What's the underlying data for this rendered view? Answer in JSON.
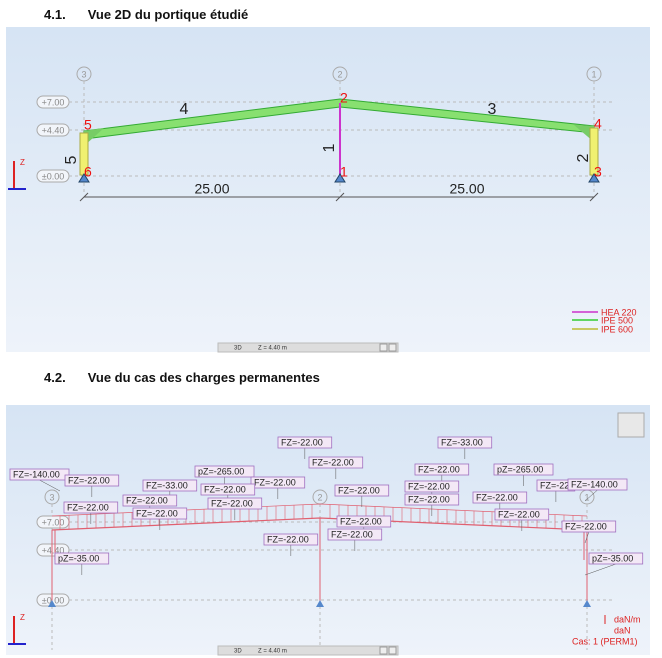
{
  "sections": [
    {
      "number": "4.1.",
      "title": "Vue 2D du portique étudié"
    },
    {
      "number": "4.2.",
      "title": "Vue du cas des charges permanentes"
    }
  ],
  "view1": {
    "axes": [
      "3",
      "2",
      "1"
    ],
    "levels": [
      "+7.00",
      "+4.40",
      "±0.00"
    ],
    "nodes": [
      "5",
      "2",
      "4",
      "6",
      "1",
      "3"
    ],
    "bars": [
      "4",
      "3",
      "1",
      "5",
      "2"
    ],
    "dimensions": [
      "25.00",
      "25.00"
    ],
    "legend": [
      "HEA 220",
      "IPE 500",
      "IPE 600"
    ],
    "axis_label": "Z",
    "status": [
      "3D",
      "Z = 4.40 m"
    ]
  },
  "view2": {
    "axes": [
      "3",
      "2",
      "1"
    ],
    "levels": [
      "+7.00",
      "+4.40",
      "±0.00"
    ],
    "loads": [
      "FZ=-22.00",
      "FZ=-33.00",
      "FZ=-22.00",
      "FZ=-140.00",
      "FZ=-22.00",
      "FZ=-22.00",
      "pZ=-265.00",
      "FZ=-33.00",
      "pZ=-265.00",
      "FZ=-22.00",
      "FZ=-22.00",
      "FZ=-22.00",
      "FZ=-22.00",
      "FZ=-22",
      "FZ=-140.00",
      "FZ=-22.00",
      "FZ=-22.00",
      "FZ=-22.00",
      "FZ=-22.00",
      "FZ=-22.00",
      "FZ=-22.00",
      "FZ=-22.00",
      "FZ=-22.00",
      "FZ=-22.00",
      "FZ=-22.00",
      "FZ=-22.00",
      "pZ=-35.00",
      "pZ=-35.00"
    ],
    "legend": [
      "daN/m",
      "daN",
      "Cas: 1 (PERM1)"
    ],
    "axis_label": "Z",
    "status": [
      "3D",
      "Z = 4.40 m"
    ]
  }
}
